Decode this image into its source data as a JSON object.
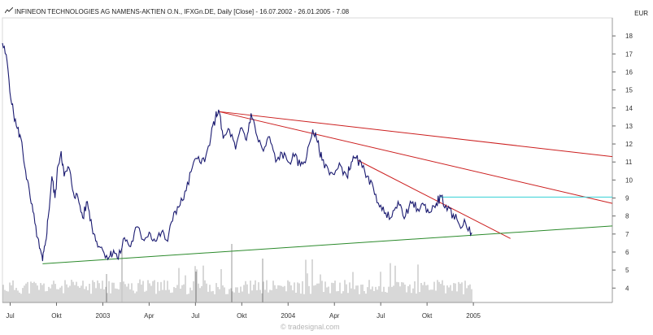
{
  "header": {
    "title": "INFINEON TECHNOLOGIES AG NAMENS-AKTIEN O.N., IFXGn.DE, Daily [Close] - 16.07.2002 - 26.01.2005 - 7.08",
    "currency": "EUR"
  },
  "watermark": "© tradesignal.com",
  "chart_data": {
    "type": "line",
    "title": "INFINEON TECHNOLOGIES AG NAMENS-AKTIEN O.N., IFXGn.DE, Daily [Close] - 16.07.2002 - 26.01.2005 - 7.08",
    "ylabel": "EUR",
    "ylim": [
      3.2,
      19
    ],
    "y_ticks": [
      4,
      5,
      6,
      7,
      8,
      9,
      10,
      11,
      12,
      13,
      14,
      15,
      16,
      17,
      18
    ],
    "x_range_months": [
      0,
      39.5
    ],
    "x_ticks": [
      {
        "label": "Jul",
        "m": 0.5
      },
      {
        "label": "Okt",
        "m": 3.5
      },
      {
        "label": "2003",
        "m": 6.5
      },
      {
        "label": "Apr",
        "m": 9.5
      },
      {
        "label": "Jul",
        "m": 12.5
      },
      {
        "label": "Okt",
        "m": 15.5
      },
      {
        "label": "2004",
        "m": 18.5
      },
      {
        "label": "Apr",
        "m": 21.5
      },
      {
        "label": "Jul",
        "m": 24.5
      },
      {
        "label": "Okt",
        "m": 27.5
      },
      {
        "label": "2005",
        "m": 30.5
      }
    ],
    "series": [
      {
        "name": "Close",
        "color": "#1a1a70",
        "points": [
          [
            0.0,
            17.6
          ],
          [
            0.3,
            16.6
          ],
          [
            0.6,
            14.2
          ],
          [
            0.9,
            13.0
          ],
          [
            1.2,
            12.3
          ],
          [
            1.5,
            10.5
          ],
          [
            1.8,
            9.0
          ],
          [
            2.1,
            7.6
          ],
          [
            2.4,
            6.2
          ],
          [
            2.6,
            5.5
          ],
          [
            2.8,
            6.6
          ],
          [
            3.0,
            8.2
          ],
          [
            3.2,
            10.2
          ],
          [
            3.4,
            9.0
          ],
          [
            3.6,
            10.8
          ],
          [
            3.8,
            11.6
          ],
          [
            4.0,
            10.2
          ],
          [
            4.3,
            10.7
          ],
          [
            4.6,
            9.3
          ],
          [
            4.9,
            9.0
          ],
          [
            5.2,
            7.9
          ],
          [
            5.5,
            8.8
          ],
          [
            5.8,
            7.4
          ],
          [
            6.1,
            6.6
          ],
          [
            6.5,
            6.1
          ],
          [
            6.9,
            5.7
          ],
          [
            7.2,
            6.1
          ],
          [
            7.5,
            5.6
          ],
          [
            7.9,
            6.8
          ],
          [
            8.3,
            6.3
          ],
          [
            8.7,
            7.4
          ],
          [
            9.1,
            6.7
          ],
          [
            9.5,
            7.1
          ],
          [
            9.9,
            6.6
          ],
          [
            10.3,
            7.1
          ],
          [
            10.7,
            6.6
          ],
          [
            11.1,
            8.2
          ],
          [
            11.5,
            8.6
          ],
          [
            11.9,
            9.4
          ],
          [
            12.3,
            10.7
          ],
          [
            12.7,
            11.3
          ],
          [
            13.1,
            11.0
          ],
          [
            13.5,
            12.4
          ],
          [
            13.8,
            13.5
          ],
          [
            14.0,
            13.9
          ],
          [
            14.3,
            12.3
          ],
          [
            14.7,
            12.8
          ],
          [
            15.1,
            11.7
          ],
          [
            15.5,
            12.9
          ],
          [
            15.8,
            12.2
          ],
          [
            16.1,
            13.7
          ],
          [
            16.5,
            12.4
          ],
          [
            16.9,
            11.6
          ],
          [
            17.3,
            12.4
          ],
          [
            17.7,
            11.0
          ],
          [
            18.1,
            11.5
          ],
          [
            18.5,
            11.0
          ],
          [
            18.9,
            11.3
          ],
          [
            19.3,
            10.8
          ],
          [
            19.7,
            11.3
          ],
          [
            20.1,
            12.8
          ],
          [
            20.4,
            12.1
          ],
          [
            20.7,
            11.1
          ],
          [
            21.1,
            10.6
          ],
          [
            21.5,
            10.3
          ],
          [
            21.9,
            10.8
          ],
          [
            22.3,
            10.2
          ],
          [
            22.6,
            11.0
          ],
          [
            22.9,
            11.2
          ],
          [
            23.3,
            10.7
          ],
          [
            23.7,
            10.2
          ],
          [
            24.1,
            9.2
          ],
          [
            24.5,
            8.6
          ],
          [
            24.9,
            7.9
          ],
          [
            25.3,
            8.3
          ],
          [
            25.7,
            8.6
          ],
          [
            26.1,
            8.0
          ],
          [
            26.5,
            8.7
          ],
          [
            26.9,
            8.4
          ],
          [
            27.3,
            8.6
          ],
          [
            27.7,
            8.2
          ],
          [
            28.1,
            8.7
          ],
          [
            28.4,
            9.1
          ],
          [
            28.8,
            8.3
          ],
          [
            29.2,
            8.1
          ],
          [
            29.6,
            7.5
          ],
          [
            30.0,
            7.6
          ],
          [
            30.4,
            7.08
          ]
        ]
      }
    ],
    "trendlines": [
      {
        "name": "long-resistance-line",
        "color": "#cc1f1f",
        "from": [
          14.0,
          13.8
        ],
        "to": [
          39.5,
          11.3
        ]
      },
      {
        "name": "mid-resistance-line",
        "color": "#cc1f1f",
        "from": [
          14.0,
          13.8
        ],
        "to": [
          39.5,
          8.7
        ]
      },
      {
        "name": "short-resistance-line",
        "color": "#cc1f1f",
        "from": [
          23.0,
          11.1
        ],
        "to": [
          32.9,
          6.75
        ]
      },
      {
        "name": "horizontal-line",
        "color": "#33d0d4",
        "from": [
          28.3,
          9.05
        ],
        "to": [
          39.5,
          9.05
        ]
      },
      {
        "name": "support-line",
        "color": "#2b8a2b",
        "from": [
          2.6,
          5.35
        ],
        "to": [
          39.5,
          7.45
        ]
      }
    ]
  }
}
